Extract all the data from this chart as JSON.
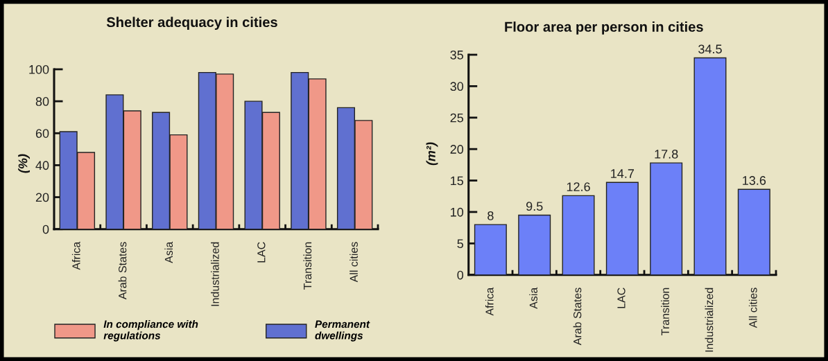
{
  "chart_data": [
    {
      "type": "bar",
      "title": "Shelter adequacy in cities",
      "ylabel": "(%)",
      "categories": [
        "Africa",
        "Arab States",
        "Asia",
        "Industrialized",
        "LAC",
        "Transition",
        "All cities"
      ],
      "series": [
        {
          "name": "Permanent dwellings",
          "color": "#6070d0",
          "values": [
            61,
            84,
            73,
            98,
            80,
            98,
            76
          ]
        },
        {
          "name": "In compliance with regulations",
          "color": "#f09888",
          "values": [
            48,
            74,
            59,
            97,
            73,
            94,
            68
          ]
        }
      ],
      "ylim": [
        0,
        100
      ],
      "yticks": [
        0,
        20,
        40,
        60,
        80,
        100
      ],
      "legend": "bottom"
    },
    {
      "type": "bar",
      "title": "Floor area per person in cities",
      "ylabel": "(m²)",
      "categories": [
        "Africa",
        "Asia",
        "Arab States",
        "LAC",
        "Transition",
        "Industrialized",
        "All cities"
      ],
      "values": [
        8,
        9.5,
        12.6,
        14.7,
        17.8,
        34.5,
        13.6
      ],
      "color": "#6c80f8",
      "ylim": [
        0,
        35
      ],
      "yticks": [
        0,
        5,
        10,
        15,
        20,
        25,
        30,
        35
      ],
      "data_labels": true
    }
  ]
}
